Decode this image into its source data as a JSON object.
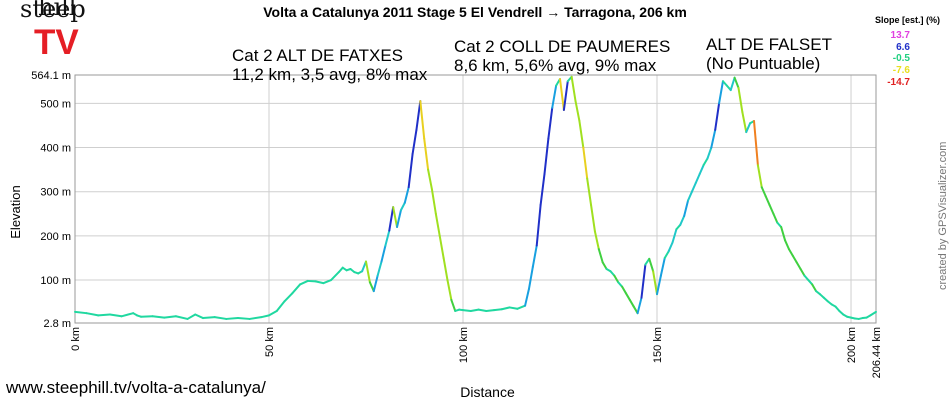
{
  "logo": {
    "line1": "steep",
    "line2": "hill",
    "line3": "TV"
  },
  "header": {
    "title": "Volta a Catalunya 2011 Stage 5  El Vendrell → Tarragona, 206 km"
  },
  "slope_legend": {
    "title": "Slope [est.] (%)",
    "items": [
      {
        "label": "13.7",
        "color": "#e040e0"
      },
      {
        "label": "6.6",
        "color": "#2030c8"
      },
      {
        "label": "-0.5",
        "color": "#20d080"
      },
      {
        "label": "-7.6",
        "color": "#e8e020"
      },
      {
        "label": "-14.7",
        "color": "#e02020"
      }
    ]
  },
  "annotations": [
    {
      "line1": "Cat 2 ALT DE FATXES",
      "line2": "11,2 km, 3,5 avg, 8% max"
    },
    {
      "line1": "Cat 2 COLL DE PAUMERES",
      "line2": "8,6 km, 5,6% avg, 9% max"
    },
    {
      "line1": "ALT DE FALSET",
      "line2": "(No Puntuable)"
    }
  ],
  "footer": {
    "url": "www.steephill.tv/volta-a-catalunya/",
    "credit": "created by GPSVisualizer.com"
  },
  "chart_data": {
    "type": "line",
    "xlabel": "Distance",
    "ylabel": "Elevation",
    "xlim": [
      0,
      206.44
    ],
    "ylim": [
      2.8,
      564.1
    ],
    "x_ticks": [
      "0 km",
      "50 km",
      "100 km",
      "150 km",
      "200 km",
      "206.44 km"
    ],
    "y_ticks": [
      "2.8 m",
      "100 m",
      "200 m",
      "300 m",
      "400 m",
      "500 m",
      "564.1 m"
    ],
    "grid": true,
    "series": [
      {
        "x": [
          0,
          3,
          6,
          9,
          12,
          15,
          16,
          17,
          20,
          23,
          26,
          29,
          31,
          33,
          36,
          39,
          42,
          45,
          48,
          50,
          52,
          54,
          56,
          58,
          60,
          62,
          64,
          66,
          68,
          69,
          70,
          71,
          72,
          73,
          74,
          75,
          76,
          77,
          78,
          79,
          80,
          81,
          82,
          83,
          84,
          85,
          86,
          87,
          88,
          89,
          90,
          91,
          92,
          93,
          94,
          95,
          96,
          97,
          98,
          99,
          100,
          102,
          104,
          106,
          108,
          110,
          112,
          114,
          116,
          117,
          118,
          119,
          120,
          121,
          122,
          123,
          124,
          125,
          126,
          127,
          128,
          129,
          130,
          131,
          132,
          133,
          134,
          135,
          136,
          137,
          138,
          139,
          140,
          141,
          142,
          143,
          144,
          145,
          146,
          147,
          148,
          149,
          150,
          151,
          152,
          153,
          154,
          155,
          156,
          157,
          158,
          159,
          160,
          161,
          162,
          163,
          164,
          165,
          166,
          167,
          168,
          169,
          170,
          171,
          172,
          173,
          174,
          175,
          176,
          177,
          178,
          179,
          180,
          181,
          182,
          183,
          184,
          185,
          186,
          187,
          188,
          189,
          190,
          191,
          192,
          193,
          194,
          195,
          196,
          197,
          198,
          199,
          200,
          201,
          202,
          203,
          204,
          205,
          206.44
        ],
        "y": [
          28,
          25,
          20,
          22,
          18,
          25,
          20,
          17,
          18,
          15,
          18,
          12,
          22,
          14,
          16,
          12,
          14,
          12,
          16,
          20,
          30,
          52,
          70,
          90,
          98,
          97,
          93,
          100,
          118,
          128,
          122,
          125,
          118,
          115,
          120,
          142,
          95,
          75,
          110,
          142,
          178,
          212,
          265,
          220,
          258,
          275,
          310,
          385,
          440,
          505,
          420,
          350,
          305,
          250,
          200,
          150,
          100,
          55,
          30,
          33,
          32,
          30,
          33,
          30,
          32,
          34,
          38,
          35,
          42,
          80,
          130,
          178,
          270,
          340,
          420,
          490,
          540,
          555,
          485,
          550,
          560,
          505,
          460,
          400,
          330,
          270,
          210,
          170,
          140,
          125,
          120,
          110,
          95,
          85,
          70,
          55,
          40,
          25,
          60,
          135,
          148,
          120,
          68,
          110,
          150,
          165,
          185,
          215,
          225,
          245,
          280,
          300,
          320,
          340,
          360,
          375,
          400,
          440,
          500,
          550,
          540,
          530,
          558,
          535,
          480,
          435,
          455,
          460,
          360,
          310,
          290,
          270,
          250,
          230,
          220,
          190,
          170,
          155,
          140,
          125,
          110,
          100,
          90,
          75,
          68,
          60,
          52,
          45,
          40,
          30,
          22,
          17,
          15,
          13,
          12,
          14,
          15,
          20,
          28
        ]
      }
    ]
  }
}
